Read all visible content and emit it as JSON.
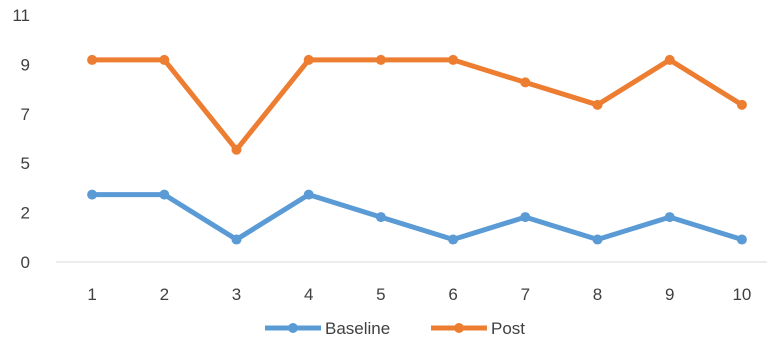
{
  "chart_data": {
    "type": "line",
    "categories": [
      "1",
      "2",
      "3",
      "4",
      "5",
      "6",
      "7",
      "8",
      "9",
      "10"
    ],
    "y_ticks": [
      "0",
      "2",
      "5",
      "7",
      "9",
      "11"
    ],
    "ylim": [
      0,
      11
    ],
    "grid": false,
    "legend_position": "bottom",
    "series": [
      {
        "name": "Baseline",
        "color": "#5B9BD5",
        "values": [
          3,
          3,
          1,
          3,
          2,
          1,
          2,
          1,
          2,
          1
        ]
      },
      {
        "name": "Post",
        "color": "#ED7D31",
        "values": [
          9,
          9,
          5,
          9,
          9,
          9,
          8,
          7,
          9,
          7
        ]
      }
    ]
  }
}
